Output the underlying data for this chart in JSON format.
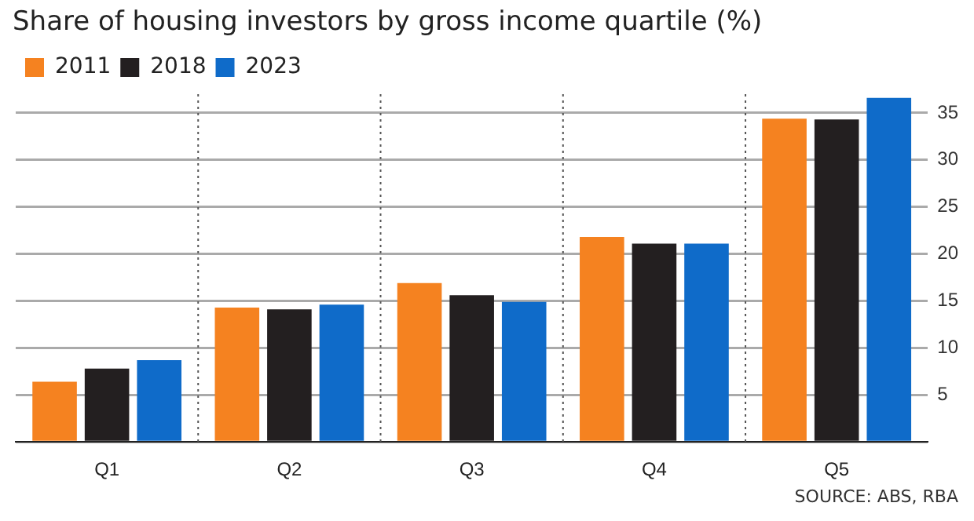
{
  "chart_data": {
    "type": "bar",
    "title": "Share of housing investors by gross income quartile (%)",
    "categories": [
      "Q1",
      "Q2",
      "Q3",
      "Q4",
      "Q5"
    ],
    "series": [
      {
        "name": "2011",
        "color": "#f58220",
        "values": [
          6.4,
          14.3,
          16.9,
          21.8,
          34.4
        ]
      },
      {
        "name": "2018",
        "color": "#231f20",
        "values": [
          7.8,
          14.1,
          15.6,
          21.1,
          34.3
        ]
      },
      {
        "name": "2023",
        "color": "#0f6bc9",
        "values": [
          8.7,
          14.6,
          14.9,
          21.1,
          36.6
        ]
      }
    ],
    "ylim": [
      0,
      37
    ],
    "yticks": [
      {
        "value": 0,
        "label": null
      },
      5,
      10,
      15,
      20,
      25,
      30,
      35
    ],
    "grid": "y",
    "legend": "top left",
    "annotations": [
      "SOURCE: ABS, RBA"
    ]
  }
}
